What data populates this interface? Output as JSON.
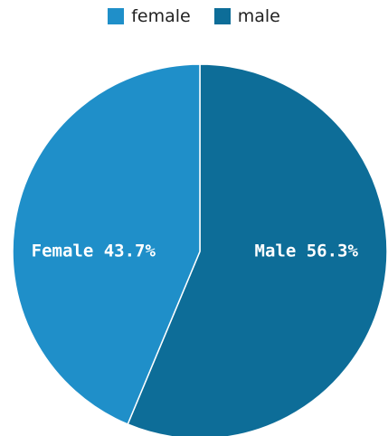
{
  "chart_data": {
    "type": "pie",
    "legend": {
      "placement": "top-center",
      "entries": [
        {
          "label": "female",
          "color": "#1f8fc9"
        },
        {
          "label": "male",
          "color": "#0d6d98"
        }
      ]
    },
    "slices": [
      {
        "name": "female",
        "label": "Female 43.7%",
        "value": 43.7,
        "color": "#1f8fc9"
      },
      {
        "name": "male",
        "label": "Male 56.3%",
        "value": 56.3,
        "color": "#0d6d98"
      }
    ]
  }
}
